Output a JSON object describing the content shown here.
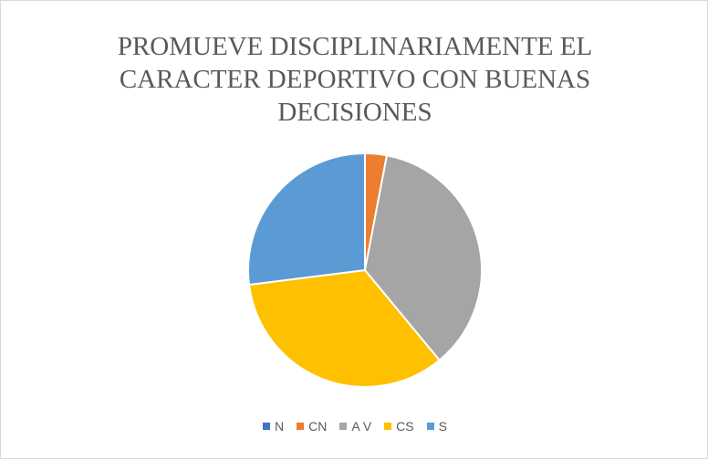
{
  "chart_data": {
    "type": "pie",
    "title": "PROMUEVE DISCIPLINARIAMENTE EL CARACTER DEPORTIVO CON BUENAS DECISIONES",
    "categories": [
      "N",
      "CN",
      "A V",
      "CS",
      "S"
    ],
    "values": [
      0,
      3,
      36,
      34,
      27
    ],
    "colors": [
      "#4472c4",
      "#ed7d31",
      "#a5a5a5",
      "#ffc000",
      "#5b9bd5"
    ],
    "legend": "bottom"
  }
}
